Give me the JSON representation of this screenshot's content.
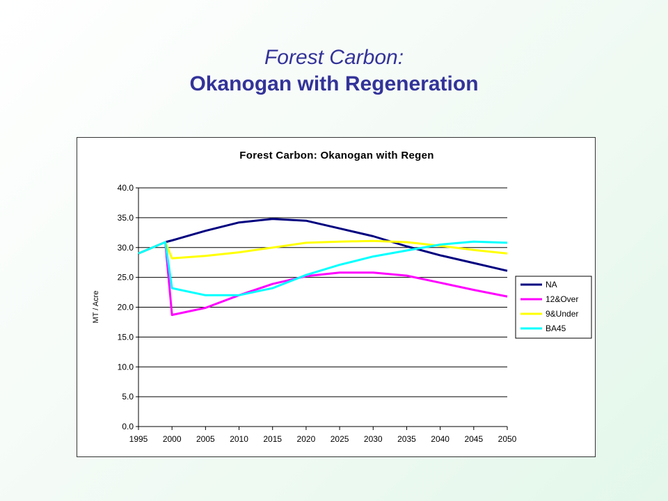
{
  "slide": {
    "title_line1": "Forest Carbon",
    "title_colon": ":",
    "title_line2": "Okanogan with Regeneration"
  },
  "chart_data": {
    "type": "line",
    "title": "Forest Carbon:  Okanogan with Regen",
    "xlabel": "",
    "ylabel": "MT / Acre",
    "xlim": [
      1995,
      2050
    ],
    "ylim": [
      0,
      40
    ],
    "x_ticks": [
      1995,
      2000,
      2005,
      2010,
      2015,
      2020,
      2025,
      2030,
      2035,
      2040,
      2045,
      2050
    ],
    "y_ticks": [
      "0.0",
      "5.0",
      "10.0",
      "15.0",
      "20.0",
      "25.0",
      "30.0",
      "35.0",
      "40.0"
    ],
    "grid": "horizontal",
    "legend_position": "right",
    "series": [
      {
        "name": "NA",
        "color": "#000080",
        "points": [
          [
            1995,
            29.0
          ],
          [
            1999,
            30.9
          ],
          [
            2000,
            31.2
          ],
          [
            2005,
            32.8
          ],
          [
            2010,
            34.2
          ],
          [
            2015,
            34.8
          ],
          [
            2020,
            34.5
          ],
          [
            2025,
            33.2
          ],
          [
            2030,
            31.9
          ],
          [
            2035,
            30.2
          ],
          [
            2040,
            28.7
          ],
          [
            2045,
            27.4
          ],
          [
            2050,
            26.1
          ]
        ]
      },
      {
        "name": "12&Over",
        "color": "#ff00ff",
        "points": [
          [
            1995,
            29.0
          ],
          [
            1999,
            30.9
          ],
          [
            2000,
            18.7
          ],
          [
            2005,
            19.9
          ],
          [
            2010,
            22.0
          ],
          [
            2015,
            23.9
          ],
          [
            2020,
            25.2
          ],
          [
            2025,
            25.8
          ],
          [
            2030,
            25.8
          ],
          [
            2035,
            25.3
          ],
          [
            2040,
            24.1
          ],
          [
            2045,
            22.9
          ],
          [
            2050,
            21.8
          ]
        ]
      },
      {
        "name": "9&Under",
        "color": "#ffff00",
        "points": [
          [
            1995,
            29.0
          ],
          [
            1999,
            30.9
          ],
          [
            2000,
            28.2
          ],
          [
            2005,
            28.6
          ],
          [
            2010,
            29.2
          ],
          [
            2015,
            30.0
          ],
          [
            2020,
            30.8
          ],
          [
            2025,
            31.0
          ],
          [
            2030,
            31.1
          ],
          [
            2035,
            30.9
          ],
          [
            2040,
            30.3
          ],
          [
            2045,
            29.6
          ],
          [
            2050,
            29.0
          ]
        ]
      },
      {
        "name": "BA45",
        "color": "#00ffff",
        "points": [
          [
            1995,
            29.0
          ],
          [
            1999,
            30.9
          ],
          [
            2000,
            23.2
          ],
          [
            2005,
            22.0
          ],
          [
            2010,
            22.0
          ],
          [
            2015,
            23.2
          ],
          [
            2020,
            25.4
          ],
          [
            2025,
            27.1
          ],
          [
            2030,
            28.5
          ],
          [
            2035,
            29.5
          ],
          [
            2040,
            30.5
          ],
          [
            2045,
            31.0
          ],
          [
            2050,
            30.8
          ]
        ]
      }
    ]
  }
}
